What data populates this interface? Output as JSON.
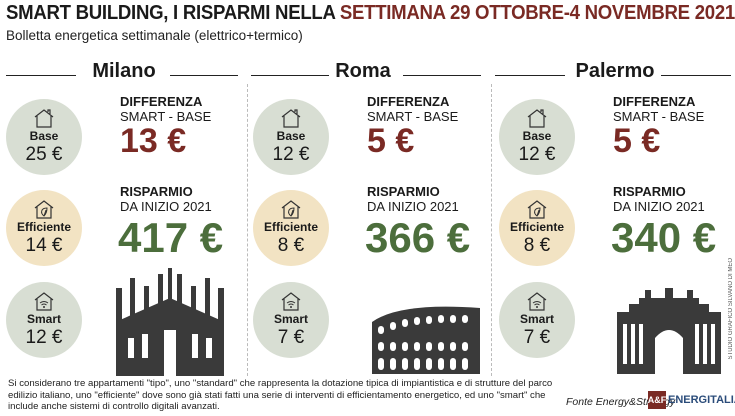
{
  "title_part1": "SMART BUILDING, I RISPARMI NELLA ",
  "title_part2": "SETTIMANA 29 OTTOBRE-4 NOVEMBRE 2021",
  "subtitle": "Bolletta energetica settimanale (elettrico+termico)",
  "labels": {
    "diff_title": "DIFFERENZA",
    "diff_sub": "SMART - BASE",
    "sav_title": "RISPARMIO",
    "sav_sub": "DA INIZIO 2021",
    "base": "Base",
    "efficient": "Efficiente",
    "smart": "Smart"
  },
  "cities": [
    {
      "name": "Milano",
      "base": "25 €",
      "efficient": "14 €",
      "smart": "12 €",
      "diff": "13 €",
      "saving": "417 €"
    },
    {
      "name": "Roma",
      "base": "12 €",
      "efficient": "8 €",
      "smart": "7 €",
      "diff": "5 €",
      "saving": "366 €"
    },
    {
      "name": "Palermo",
      "base": "12 €",
      "efficient": "8 €",
      "smart": "7 €",
      "diff": "5 €",
      "saving": "340 €"
    }
  ],
  "note": "Si considerano tre appartamenti \"tipo\", uno \"standard\" che rappresenta la dotazione tipica di impiantistica e di strutture del parco edilizio italiano, uno \"efficiente\" dove sono già stati fatti una serie di interventi di efficientamento energetico, ed uno \"smart\" che include anche sistemi di controllo digitali avanzati.",
  "source": "Fonte Energy&Strategy",
  "brand": "ENERGITALIA",
  "brand_logo": "A&F",
  "credit": "STUDIO GRAFICO SILVANO DI MEO",
  "colors": {
    "accent_red": "#7a2a24",
    "accent_green": "#4c6e3c",
    "circle_grey": "#d8ded3",
    "circle_cream": "#f2e3c3"
  }
}
